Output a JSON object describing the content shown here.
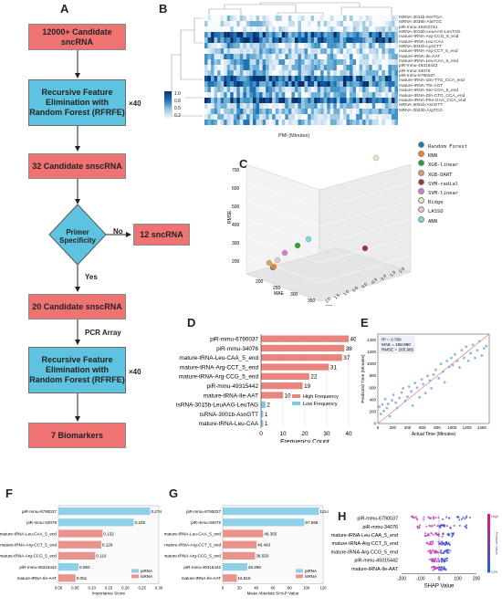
{
  "panels": {
    "A": "A",
    "B": "B",
    "C": "C",
    "D": "D",
    "E": "E",
    "F": "F",
    "G": "G",
    "H": "H"
  },
  "flow": {
    "box1": "12000+ Candidate sncRNA",
    "box2": "Recursive Feature Elimination with Random Forest (RFRFE)",
    "box3": "32 Candidate snscRNA",
    "diamond": "Primer Specificity",
    "no": "No",
    "box_no": "12 sncRNA",
    "yes": "Yes",
    "box4": "20 Candidate snscRNA",
    "pcr": "PCR Array",
    "box5": "Recursive Feature Elimination with Random Forest (RFRFE)",
    "box6": "7 Biomarkers",
    "x40a": "×40",
    "x40b": "×40"
  },
  "heatmap": {
    "xlabel": "PMI (Minutes)",
    "colorbar_ticks": [
      "1.0",
      "0.8",
      "0.5",
      "0.2"
    ],
    "rows": [
      "tsRNA-3011b-SerTGA",
      "tsRNA-3036b-AlaTGC",
      "piR-mmu-49203731",
      "tsRNA-3015b-LeuAAG-LeuTAG",
      "mature-tRNA-Arg-CCG_5_end",
      "mature-tRNA-Leu-CAA",
      "tsRNA-3031b-LysCTT",
      "mature-tRNA-Arg-CCT_5_end",
      "mature-tRNA-Ile-AAT",
      "mature-tRNA-Leu-CAA_5_end",
      "piR-mmu-49315442",
      "piR-mmu-34076",
      "piR-mmu-6790037",
      "mature-tRNA-Gln-TTG_CCA_end",
      "mature-tRNA-Thr-AGT",
      "mature-tRNA-Ser-CGA_5_end",
      "mature-tRNA-Gln-CTG_CCA_end",
      "mature-tRNA-Phe-GAA_CCA_end",
      "tsRNA-3001b-AsnGTT",
      "tsRNA-3022b-ArgTCG"
    ]
  },
  "chart_data": [
    {
      "panel": "C",
      "type": "scatter",
      "xlabel": "MAE",
      "ylabel": "RMSE",
      "y_ticks": [
        "700",
        "600",
        "500",
        "400",
        "300",
        "200"
      ],
      "mae_ticks": [
        "200",
        "250",
        "300",
        "350",
        "400"
      ],
      "z_ticks": [
        "2.0",
        "1.5",
        "1.0",
        "0.5",
        "0.0",
        "-0.5",
        "-1.0",
        "-1.5",
        "-2.0"
      ],
      "legend": [
        {
          "name": "Random Forest",
          "color": "#1f77b4"
        },
        {
          "name": "KNN",
          "color": "#ff7f0e"
        },
        {
          "name": "XGB-linear",
          "color": "#2ca02c"
        },
        {
          "name": "XGB-DART",
          "color": "#d9a26c"
        },
        {
          "name": "SVM-radial",
          "color": "#a03030"
        },
        {
          "name": "SVM-linear",
          "color": "#d67bd6"
        },
        {
          "name": "Ridge",
          "color": "#e6e6c8"
        },
        {
          "name": "LASSO",
          "color": "#e8c8d8"
        },
        {
          "name": "ANN",
          "color": "#7ad8e0"
        }
      ]
    },
    {
      "panel": "D",
      "type": "bar",
      "xlabel": "Frequency Count",
      "categories": [
        "piR-mmu-6790037",
        "piR-mmu-34076",
        "mature-tRNA-Leu-CAA_5_end",
        "mature-tRNA-Arg-CCT_5_end",
        "mature-tRNA-Arg-CCG_5_end",
        "piR-mmu-49315442",
        "mature-tRNA-Ile-AAT",
        "tsRNA-3015b-LeuAAG-LeuTAG",
        "tsRNA-3001b-AsnGTT",
        "mature-tRNA-Leu-CAA"
      ],
      "values": [
        40,
        38,
        37,
        31,
        22,
        19,
        10,
        2,
        1,
        1
      ],
      "high": [
        true,
        true,
        true,
        true,
        true,
        true,
        true,
        false,
        false,
        false
      ],
      "xlim": [
        0,
        40
      ],
      "x_ticks": [
        "0",
        "10",
        "20",
        "30",
        "40"
      ],
      "legend": [
        "High Frequency",
        "Low Frequency"
      ],
      "colors": {
        "high": "#e8857e",
        "low": "#7ec8e3"
      }
    },
    {
      "panel": "E",
      "type": "scatter",
      "xlabel": "Actual Time (Minutes)",
      "ylabel": "Predicted Time (Minutes)",
      "stats": [
        "R² = 0.760",
        "MAE = 158.990",
        "RMSE = 205.965"
      ],
      "xlim": [
        0,
        1500
      ],
      "ylim": [
        0,
        1500
      ],
      "x_ticks": [
        "0",
        "200",
        "400",
        "600",
        "800",
        "1000",
        "1200",
        "1400"
      ],
      "y_ticks": [
        "0",
        "200",
        "400",
        "600",
        "800",
        "1000",
        "1200",
        "1400"
      ],
      "points": [
        [
          20,
          280
        ],
        [
          40,
          160
        ],
        [
          60,
          320
        ],
        [
          80,
          210
        ],
        [
          100,
          410
        ],
        [
          120,
          260
        ],
        [
          140,
          330
        ],
        [
          160,
          120
        ],
        [
          190,
          390
        ],
        [
          210,
          480
        ],
        [
          240,
          350
        ],
        [
          260,
          260
        ],
        [
          290,
          430
        ],
        [
          320,
          520
        ],
        [
          340,
          590
        ],
        [
          370,
          380
        ],
        [
          400,
          450
        ],
        [
          420,
          620
        ],
        [
          450,
          540
        ],
        [
          470,
          300
        ],
        [
          500,
          680
        ],
        [
          530,
          600
        ],
        [
          560,
          440
        ],
        [
          590,
          740
        ],
        [
          610,
          660
        ],
        [
          640,
          510
        ],
        [
          670,
          800
        ],
        [
          700,
          720
        ],
        [
          720,
          590
        ],
        [
          750,
          820
        ],
        [
          780,
          900
        ],
        [
          820,
          760
        ],
        [
          850,
          1000
        ],
        [
          880,
          870
        ],
        [
          900,
          690
        ],
        [
          930,
          1050
        ],
        [
          960,
          950
        ],
        [
          990,
          1100
        ],
        [
          1010,
          980
        ],
        [
          1040,
          1160
        ],
        [
          1070,
          1050
        ],
        [
          1100,
          940
        ],
        [
          1130,
          1230
        ],
        [
          1160,
          1100
        ],
        [
          1190,
          1290
        ],
        [
          1220,
          1050
        ],
        [
          1250,
          1180
        ],
        [
          1280,
          1320
        ],
        [
          1310,
          1100
        ],
        [
          1340,
          1230
        ],
        [
          1370,
          1380
        ],
        [
          1400,
          1140
        ],
        [
          1430,
          1260
        ],
        [
          1460,
          1300
        ]
      ]
    },
    {
      "panel": "F",
      "type": "bar",
      "xlabel": "Importance Score",
      "categories": [
        "piR-mmu-6790037",
        "piR-mmu-34076",
        "mature-tRNA-Leu-CAA_5_end",
        "mature-tRNA-Arg-CCT_5_end",
        "mature-tRNA-Arg-CCG_5_end",
        "piR-mmu-49315442",
        "mature-tRNA-Ile-AAT"
      ],
      "values": [
        0.274,
        0.225,
        0.132,
        0.128,
        0.11,
        0.06,
        0.051
      ],
      "labels": [
        "0.274",
        "0.225",
        "0.132",
        "0.128",
        "0.110",
        "0.060",
        "0.051"
      ],
      "types": [
        "piRNA",
        "piRNA",
        "tsRNA",
        "tsRNA",
        "tsRNA",
        "piRNA",
        "tsRNA"
      ],
      "xlim": [
        0,
        0.3
      ],
      "x_ticks": [
        "0.00",
        "0.05",
        "0.10",
        "0.15",
        "0.20",
        "0.25",
        "0.30"
      ],
      "legend": [
        "piRNA",
        "tsRNA"
      ],
      "colors": {
        "piRNA": "#8fcfe8",
        "tsRNA": "#e8938c"
      }
    },
    {
      "panel": "G",
      "type": "bar",
      "xlabel": "Mean Absolute SHAP Value",
      "categories": [
        "piR-mmu-6790037",
        "piR-mmu-34076",
        "mature-tRNA-Leu-CAA_5_end",
        "mature-tRNA-Arg-CCT_5_end",
        "mature-tRNA-Arg-CCG_5_end",
        "piR-mmu-49315442",
        "mature-tRNA-Ile-AAT"
      ],
      "values": [
        115.041,
        97.566,
        48.355,
        40.443,
        38.55,
        29.296,
        16.816
      ],
      "labels": [
        "115.041",
        "97.566",
        "48.355",
        "40.443",
        "38.550",
        "29.296",
        "16.816"
      ],
      "types": [
        "piRNA",
        "piRNA",
        "tsRNA",
        "tsRNA",
        "tsRNA",
        "piRNA",
        "tsRNA"
      ],
      "xlim": [
        0,
        120
      ],
      "x_ticks": [
        "0",
        "20",
        "40",
        "60",
        "80",
        "100",
        "120"
      ],
      "legend": [
        "piRNA",
        "tsRNA"
      ],
      "colors": {
        "piRNA": "#8fcfe8",
        "tsRNA": "#e8938c"
      }
    },
    {
      "panel": "H",
      "type": "scatter",
      "xlabel": "SHAP Value",
      "categories": [
        "piR-mmu-6790037",
        "piR-mmu-34076",
        "mature-tRNA-Leu-CAA_5_end",
        "mature-tRNA-Arg-CCT_5_end",
        "mature-tRNA-Arg-CCG_5_end",
        "piR-mmu-49315442",
        "mature-tRNA-Ile-AAT"
      ],
      "xlim": [
        -200,
        200
      ],
      "x_ticks": [
        "-200",
        "-100",
        "0",
        "100",
        "200"
      ],
      "colorbar_label": "Feature Value",
      "colorbar_high": "High",
      "colorbar_low": "Low"
    }
  ]
}
